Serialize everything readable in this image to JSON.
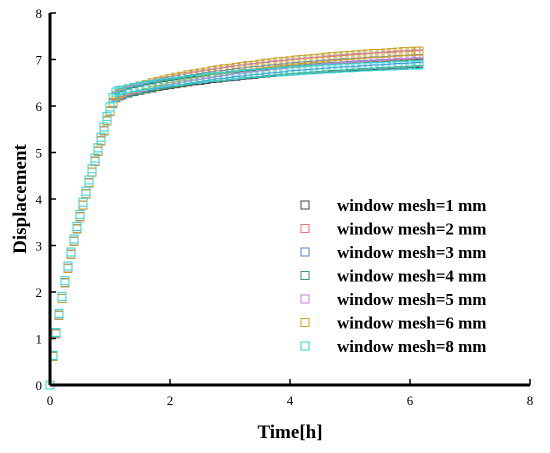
{
  "chart_data": {
    "type": "scatter",
    "title": "",
    "xlabel": "Time[h]",
    "ylabel": "Displacement",
    "xlim": [
      0,
      8
    ],
    "ylim": [
      0,
      8
    ],
    "xticks": [
      0,
      2,
      4,
      6,
      8
    ],
    "yticks": [
      0,
      1,
      2,
      3,
      4,
      5,
      6,
      7,
      8
    ],
    "xtick_labels": [
      "0",
      "2",
      "4",
      "6",
      "8"
    ],
    "ytick_labels": [
      "0",
      "1",
      "2",
      "3",
      "4",
      "5",
      "6",
      "7",
      "8"
    ],
    "grid": false,
    "legend_position": "bottom-right",
    "marker": "open-square",
    "x": [
      0,
      0.05,
      0.1,
      0.15,
      0.2,
      0.25,
      0.3,
      0.35,
      0.4,
      0.45,
      0.5,
      0.55,
      0.6,
      0.65,
      0.7,
      0.75,
      0.8,
      0.85,
      0.9,
      0.95,
      1.0,
      1.05,
      1.1,
      1.15,
      1.2,
      1.3,
      1.4,
      1.5,
      1.6,
      1.7,
      1.8,
      1.9,
      2.0,
      2.1,
      2.2,
      2.3,
      2.4,
      2.5,
      2.6,
      2.7,
      2.8,
      2.9,
      3.0,
      3.1,
      3.2,
      3.3,
      3.4,
      3.5,
      3.6,
      3.7,
      3.8,
      3.9,
      4.0,
      4.1,
      4.2,
      4.3,
      4.4,
      4.5,
      4.6,
      4.7,
      4.8,
      4.9,
      5.0,
      5.1,
      5.2,
      5.3,
      5.4,
      5.5,
      5.6,
      5.7,
      5.8,
      5.9,
      6.0,
      6.1,
      6.15
    ],
    "series": [
      {
        "name": "window mesh=1 mm",
        "color": "#444444",
        "values": [
          0,
          0.62,
          1.1,
          1.5,
          1.86,
          2.2,
          2.51,
          2.81,
          3.09,
          3.36,
          3.62,
          3.87,
          4.11,
          4.35,
          4.58,
          4.81,
          5.03,
          5.25,
          5.47,
          5.68,
          5.89,
          6.06,
          6.18,
          6.22,
          6.24,
          6.28,
          6.31,
          6.34,
          6.37,
          6.39,
          6.42,
          6.44,
          6.46,
          6.48,
          6.5,
          6.52,
          6.54,
          6.55,
          6.57,
          6.59,
          6.6,
          6.62,
          6.63,
          6.64,
          6.66,
          6.67,
          6.68,
          6.7,
          6.71,
          6.72,
          6.73,
          6.74,
          6.75,
          6.76,
          6.77,
          6.78,
          6.79,
          6.8,
          6.81,
          6.82,
          6.82,
          6.83,
          6.84,
          6.85,
          6.86,
          6.86,
          6.87,
          6.88,
          6.88,
          6.89,
          6.9,
          6.9,
          6.91,
          6.91,
          6.92
        ]
      },
      {
        "name": "window mesh=2 mm",
        "color": "#e8736f",
        "values": [
          0,
          0.62,
          1.1,
          1.5,
          1.86,
          2.2,
          2.51,
          2.81,
          3.09,
          3.36,
          3.62,
          3.87,
          4.11,
          4.35,
          4.58,
          4.81,
          5.03,
          5.25,
          5.47,
          5.68,
          5.89,
          6.07,
          6.2,
          6.25,
          6.28,
          6.32,
          6.36,
          6.4,
          6.43,
          6.46,
          6.49,
          6.52,
          6.55,
          6.57,
          6.6,
          6.62,
          6.64,
          6.66,
          6.68,
          6.7,
          6.72,
          6.74,
          6.76,
          6.78,
          6.79,
          6.81,
          6.82,
          6.84,
          6.85,
          6.87,
          6.88,
          6.89,
          6.91,
          6.92,
          6.93,
          6.94,
          6.95,
          6.96,
          6.97,
          6.98,
          6.99,
          7.0,
          7.01,
          7.02,
          7.03,
          7.04,
          7.05,
          7.06,
          7.06,
          7.07,
          7.08,
          7.09,
          7.09,
          7.1,
          7.11
        ]
      },
      {
        "name": "window mesh=3 mm",
        "color": "#4f7fd6",
        "values": [
          0,
          0.62,
          1.1,
          1.5,
          1.86,
          2.2,
          2.51,
          2.81,
          3.09,
          3.36,
          3.62,
          3.87,
          4.11,
          4.35,
          4.58,
          4.81,
          5.03,
          5.25,
          5.47,
          5.68,
          5.89,
          6.06,
          6.19,
          6.23,
          6.26,
          6.3,
          6.34,
          6.37,
          6.4,
          6.43,
          6.46,
          6.48,
          6.5,
          6.53,
          6.55,
          6.57,
          6.59,
          6.61,
          6.63,
          6.65,
          6.67,
          6.68,
          6.7,
          6.72,
          6.73,
          6.75,
          6.76,
          6.77,
          6.79,
          6.8,
          6.81,
          6.82,
          6.84,
          6.85,
          6.86,
          6.87,
          6.88,
          6.89,
          6.9,
          6.91,
          6.92,
          6.93,
          6.93,
          6.94,
          6.95,
          6.96,
          6.97,
          6.97,
          6.98,
          6.99,
          7.0,
          7.0,
          7.01,
          7.02,
          7.02
        ]
      },
      {
        "name": "window mesh=4 mm",
        "color": "#3a9a6a",
        "values": [
          0,
          0.62,
          1.1,
          1.5,
          1.86,
          2.2,
          2.51,
          2.81,
          3.09,
          3.36,
          3.62,
          3.87,
          4.11,
          4.35,
          4.58,
          4.81,
          5.03,
          5.25,
          5.47,
          5.68,
          5.89,
          6.06,
          6.18,
          6.22,
          6.25,
          6.29,
          6.32,
          6.35,
          6.38,
          6.41,
          6.43,
          6.46,
          6.48,
          6.5,
          6.52,
          6.54,
          6.56,
          6.58,
          6.6,
          6.61,
          6.63,
          6.64,
          6.66,
          6.67,
          6.69,
          6.7,
          6.71,
          6.72,
          6.74,
          6.75,
          6.76,
          6.77,
          6.78,
          6.79,
          6.8,
          6.81,
          6.82,
          6.83,
          6.84,
          6.85,
          6.85,
          6.86,
          6.87,
          6.88,
          6.89,
          6.89,
          6.9,
          6.91,
          6.91,
          6.92,
          6.93,
          6.93,
          6.94,
          6.95,
          6.95
        ]
      },
      {
        "name": "window mesh=5 mm",
        "color": "#c77ee0",
        "values": [
          0,
          0.62,
          1.1,
          1.5,
          1.86,
          2.2,
          2.51,
          2.81,
          3.09,
          3.36,
          3.62,
          3.87,
          4.11,
          4.35,
          4.58,
          4.81,
          5.03,
          5.25,
          5.47,
          5.68,
          5.89,
          6.07,
          6.2,
          6.25,
          6.28,
          6.33,
          6.37,
          6.4,
          6.44,
          6.47,
          6.5,
          6.53,
          6.55,
          6.58,
          6.6,
          6.63,
          6.65,
          6.67,
          6.69,
          6.71,
          6.73,
          6.75,
          6.77,
          6.78,
          6.8,
          6.82,
          6.83,
          6.85,
          6.86,
          6.88,
          6.89,
          6.9,
          6.92,
          6.93,
          6.94,
          6.95,
          6.96,
          6.97,
          6.99,
          7.0,
          7.01,
          7.02,
          7.03,
          7.04,
          7.05,
          7.05,
          7.06,
          7.07,
          7.08,
          7.09,
          7.1,
          7.1,
          7.11,
          7.12,
          7.12
        ]
      },
      {
        "name": "window mesh=6 mm",
        "color": "#c9a227",
        "values": [
          0,
          0.62,
          1.1,
          1.5,
          1.86,
          2.2,
          2.51,
          2.81,
          3.09,
          3.36,
          3.62,
          3.87,
          4.11,
          4.35,
          4.58,
          4.81,
          5.03,
          5.25,
          5.47,
          5.68,
          5.89,
          6.08,
          6.22,
          6.27,
          6.3,
          6.35,
          6.39,
          6.43,
          6.46,
          6.5,
          6.53,
          6.56,
          6.59,
          6.62,
          6.64,
          6.67,
          6.69,
          6.71,
          6.73,
          6.76,
          6.78,
          6.8,
          6.81,
          6.83,
          6.85,
          6.87,
          6.88,
          6.9,
          6.92,
          6.93,
          6.95,
          6.96,
          6.97,
          6.99,
          7.0,
          7.01,
          7.02,
          7.03,
          7.05,
          7.06,
          7.07,
          7.08,
          7.09,
          7.1,
          7.11,
          7.12,
          7.13,
          7.13,
          7.14,
          7.15,
          7.16,
          7.17,
          7.17,
          7.18,
          7.18
        ]
      },
      {
        "name": "window mesh=8 mm",
        "color": "#2ad4d4",
        "values": [
          0,
          0.64,
          1.13,
          1.54,
          1.9,
          2.24,
          2.56,
          2.86,
          3.14,
          3.41,
          3.67,
          3.93,
          4.17,
          4.41,
          4.65,
          4.88,
          5.1,
          5.33,
          5.55,
          5.77,
          5.98,
          6.18,
          6.3,
          6.33,
          6.34,
          6.37,
          6.4,
          6.42,
          6.44,
          6.46,
          6.48,
          6.5,
          6.52,
          6.53,
          6.55,
          6.56,
          6.58,
          6.59,
          6.61,
          6.62,
          6.63,
          6.64,
          6.65,
          6.67,
          6.68,
          6.69,
          6.7,
          6.71,
          6.72,
          6.73,
          6.73,
          6.74,
          6.75,
          6.76,
          6.77,
          6.78,
          6.78,
          6.79,
          6.8,
          6.8,
          6.81,
          6.82,
          6.82,
          6.83,
          6.84,
          6.84,
          6.85,
          6.85,
          6.86,
          6.86,
          6.87,
          6.87,
          6.88,
          6.88,
          6.89
        ]
      }
    ]
  }
}
